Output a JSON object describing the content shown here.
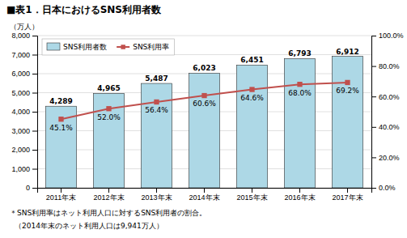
{
  "chart_data": {
    "type": "bar",
    "title": "■表1．日本におけるSNS利用者数",
    "ylabel": "（万人）",
    "categories": [
      "2011年末",
      "2012年末",
      "2013年末",
      "2014年末",
      "2015年末",
      "2016年末",
      "2017年末"
    ],
    "series": [
      {
        "name": "SNS利用者数",
        "type": "bar",
        "color": "#add8e6",
        "values": [
          4289,
          4965,
          5487,
          6023,
          6451,
          6793,
          6912
        ],
        "value_labels": [
          "4,289",
          "4,965",
          "5,487",
          "6,023",
          "6,451",
          "6,793",
          "6,912"
        ]
      },
      {
        "name": "SNS利用率",
        "type": "line",
        "axis": "y2",
        "color": "#c0504d",
        "marker": "square",
        "values": [
          45.1,
          52.0,
          56.4,
          60.6,
          64.6,
          68.0,
          69.2
        ],
        "value_labels": [
          "45.1%",
          "52.0%",
          "56.4%",
          "60.6%",
          "64.6%",
          "68.0%",
          "69.2%"
        ]
      }
    ],
    "ylim": [
      0,
      8000
    ],
    "yticks": [
      0,
      {
        "value": 1000,
        "label": "1,000"
      },
      {
        "value": 2000,
        "label": "2,000"
      },
      {
        "value": 3000,
        "label": "3,000"
      },
      {
        "value": 4000,
        "label": "4,000"
      },
      {
        "value": 5000,
        "label": "5,000"
      },
      {
        "value": 6000,
        "label": "6,000"
      },
      {
        "value": 7000,
        "label": "7,000"
      },
      {
        "value": 8000,
        "label": "8,000"
      }
    ],
    "y2lim": [
      0.0,
      100.0
    ],
    "y2ticks": [
      {
        "value": 0.0,
        "label": "0.0%"
      },
      {
        "value": 20.0,
        "label": "20.0%"
      },
      {
        "value": 40.0,
        "label": "40.0%"
      },
      {
        "value": 60.0,
        "label": "60.0%"
      },
      {
        "value": 80.0,
        "label": "80.0%"
      },
      {
        "value": 100.0,
        "label": "100.0%"
      }
    ],
    "grid": true,
    "legend": "upper left",
    "data_labels": true,
    "annotations": [
      "＊SNS利用率はネット利用人口に対するSNS利用者の割合。",
      "（2014年末のネット利用人口は9,941万人）"
    ]
  }
}
